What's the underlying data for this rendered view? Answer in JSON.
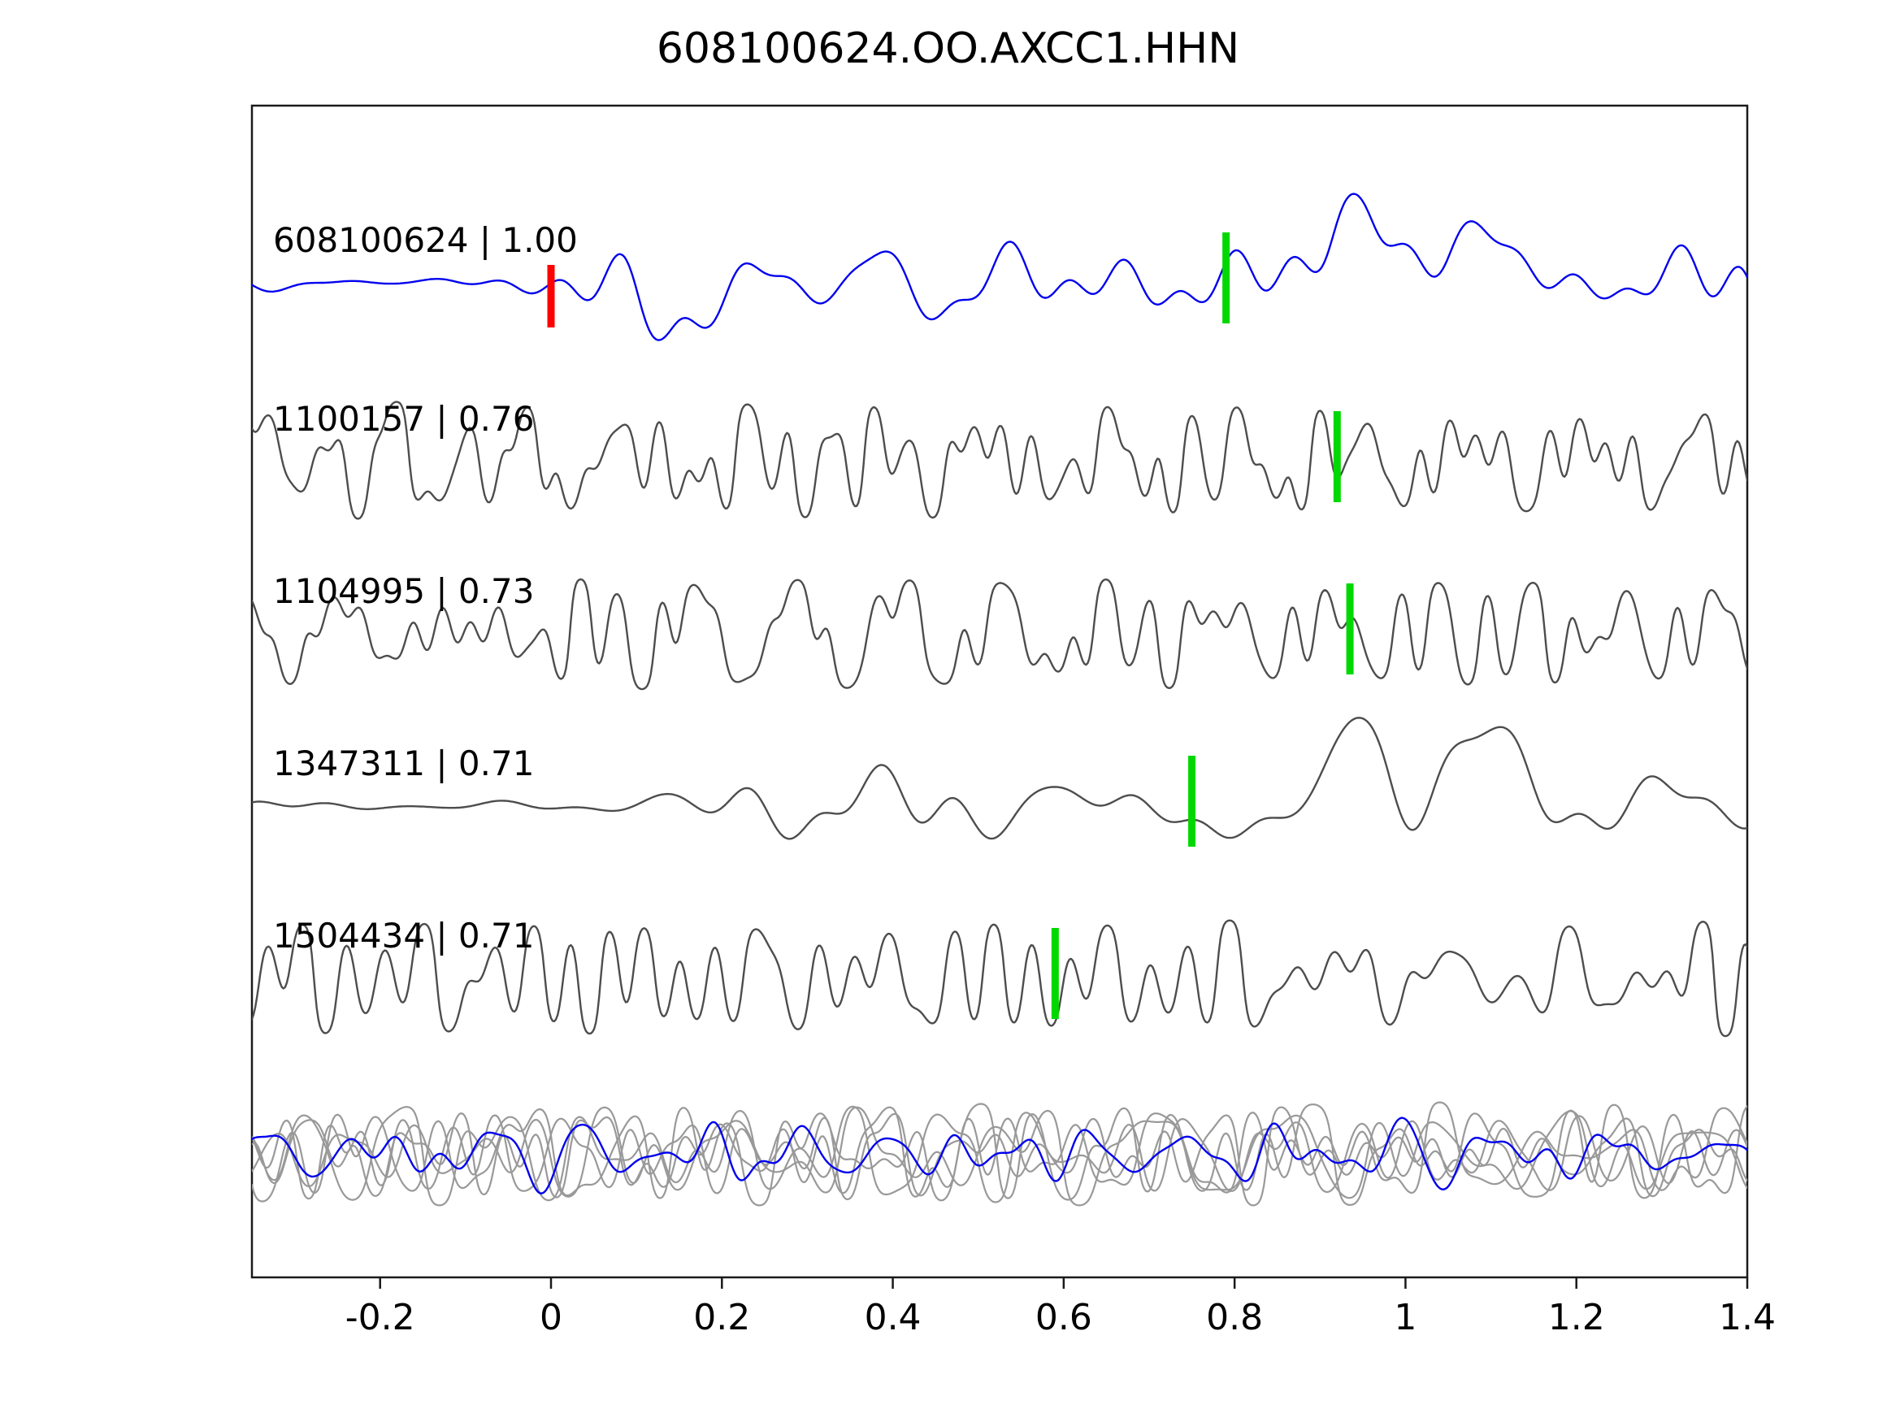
{
  "chart_data": {
    "type": "line",
    "title": "608100624.OO.AXCC1.HHN",
    "xlabel": "",
    "ylabel": "",
    "xlim": [
      -0.35,
      1.4
    ],
    "x_ticks": [
      -0.2,
      0,
      0.2,
      0.4,
      0.6,
      0.8,
      1,
      1.2,
      1.4
    ],
    "x_tick_labels": [
      "-0.2",
      "0",
      "0.2",
      "0.4",
      "0.6",
      "0.8",
      "1",
      "1.2",
      "1.4"
    ],
    "grid": false,
    "legend": "none",
    "description": "Template waveform (blue) with four matched detection waveforms (gray), pick markers (red = template origin, green = picks), and overlay of all traces at bottom",
    "colors": {
      "template_trace": "#0000ee",
      "detection_trace": "#4d4d4d",
      "overlay_trace": "#999999",
      "red_marker": "#ff0000",
      "green_marker": "#00d800",
      "axis": "#1a1a1a",
      "text": "#000000"
    },
    "traces": [
      {
        "id": "608100624",
        "correlation": "1.00",
        "label": "608100624 | 1.00",
        "kind": "template",
        "color_key": "template_trace",
        "red_marker_x": 0.0,
        "green_marker_x": 0.79,
        "seed": 42,
        "amp": 52,
        "fmin": 7,
        "fmax": 30,
        "clip": 0,
        "envelope": {
          "quiet": 0.3,
          "start": -0.1,
          "end": 0.12
        },
        "bumps": [
          {
            "x": 0.95,
            "w": 0.05,
            "a": 115
          },
          {
            "x": 1.1,
            "w": 0.04,
            "a": 70
          },
          {
            "x": 0.13,
            "w": 0.035,
            "a": -75
          }
        ]
      },
      {
        "id": "1100157",
        "correlation": "0.76",
        "label": "1100157 | 0.76",
        "kind": "detection",
        "color_key": "detection_trace",
        "red_marker_x": null,
        "green_marker_x": 0.92,
        "seed": 7,
        "amp": 85,
        "fmin": 12,
        "fmax": 58,
        "clip": 1,
        "envelope": null,
        "bumps": []
      },
      {
        "id": "1104995",
        "correlation": "0.73",
        "label": "1104995 | 0.73",
        "kind": "detection",
        "color_key": "detection_trace",
        "red_marker_x": null,
        "green_marker_x": 0.935,
        "seed": 19,
        "amp": 78,
        "fmin": 11,
        "fmax": 55,
        "clip": 1,
        "envelope": null,
        "bumps": []
      },
      {
        "id": "1347311",
        "correlation": "0.71",
        "label": "1347311 | 0.71",
        "kind": "detection",
        "color_key": "detection_trace",
        "red_marker_x": null,
        "green_marker_x": 0.75,
        "seed": 23,
        "amp": 62,
        "fmin": 6,
        "fmax": 24,
        "clip": 0,
        "envelope": {
          "quiet": 0.12,
          "start": 0.02,
          "end": 0.3
        },
        "bumps": [
          {
            "x": 0.93,
            "w": 0.05,
            "a": 130
          },
          {
            "x": 1.1,
            "w": 0.045,
            "a": 100
          },
          {
            "x": 0.85,
            "w": 0.04,
            "a": -85
          }
        ]
      },
      {
        "id": "1504434",
        "correlation": "0.71",
        "label": "1504434 | 0.71",
        "kind": "detection",
        "color_key": "detection_trace",
        "red_marker_x": null,
        "green_marker_x": 0.59,
        "seed": 31,
        "amp": 82,
        "fmin": 10,
        "fmax": 48,
        "clip": 1,
        "envelope": null,
        "bumps": []
      }
    ],
    "overlay": {
      "gray_seeds": [
        101,
        202,
        303,
        404,
        505
      ],
      "gray_amp": 72,
      "gray_fmin": 9,
      "gray_fmax": 46,
      "blue_seed": 555,
      "blue_amp": 50,
      "blue_fmin": 9,
      "blue_fmax": 40
    }
  }
}
